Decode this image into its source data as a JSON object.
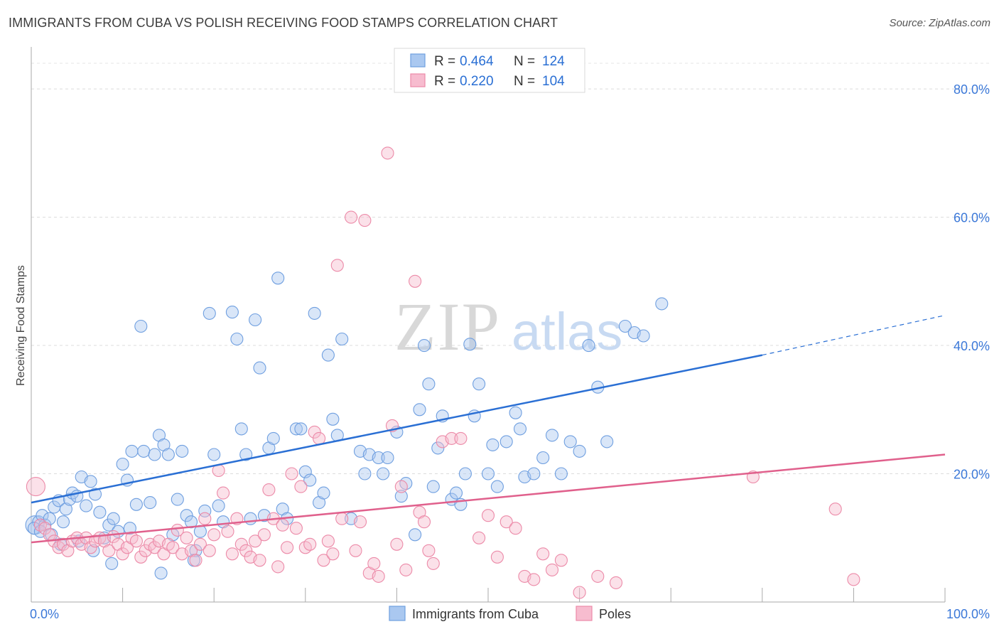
{
  "title": "IMMIGRANTS FROM CUBA VS POLISH RECEIVING FOOD STAMPS CORRELATION CHART",
  "source": "Source: ZipAtlas.com",
  "watermark": {
    "zip": "ZIP",
    "atlas": "atlas"
  },
  "chart_data": {
    "type": "scatter",
    "title": "IMMIGRANTS FROM CUBA VS POLISH RECEIVING FOOD STAMPS CORRELATION CHART",
    "xlabel": "",
    "ylabel": "Receiving Food Stamps",
    "xlim": [
      0,
      100
    ],
    "ylim": [
      0,
      85
    ],
    "x_tick_labels": [
      "0.0%",
      "100.0%"
    ],
    "y_ticks": [
      20,
      40,
      60,
      80
    ],
    "y_tick_labels": [
      "20.0%",
      "40.0%",
      "60.0%",
      "80.0%"
    ],
    "grid": true,
    "legend_position": "top-center",
    "stats": [
      {
        "r_label": "R =",
        "r": "0.464",
        "n_label": "N =",
        "n": "124"
      },
      {
        "r_label": "R =",
        "r": "0.220",
        "n_label": "N =",
        "n": "104"
      }
    ],
    "series": [
      {
        "name": "Immigrants from Cuba",
        "color": "#6f9fe0",
        "fill": "#aac8f0",
        "line_color": "#2a6fd4",
        "trend": {
          "x0": 0,
          "y0": 15.5,
          "x1": 80,
          "y1": 38.5,
          "dash_to_x": 100,
          "dash_to_y": 44.7
        },
        "points": [
          [
            0.4,
            12
          ],
          [
            0.8,
            12.5
          ],
          [
            1.2,
            13.5
          ],
          [
            1.5,
            12
          ],
          [
            2,
            13
          ],
          [
            2.5,
            14.8
          ],
          [
            3,
            15.8
          ],
          [
            3.5,
            12.5
          ],
          [
            3.8,
            14.5
          ],
          [
            4.2,
            16
          ],
          [
            4.5,
            17
          ],
          [
            5,
            16.5
          ],
          [
            5.5,
            19.5
          ],
          [
            6,
            15
          ],
          [
            6.5,
            18.8
          ],
          [
            7,
            16.8
          ],
          [
            7.5,
            14
          ],
          [
            8,
            10
          ],
          [
            8.5,
            12
          ],
          [
            9,
            13
          ],
          [
            9.5,
            11
          ],
          [
            10,
            21.5
          ],
          [
            10.5,
            19
          ],
          [
            11,
            23.5
          ],
          [
            11.5,
            15.2
          ],
          [
            12,
            43
          ],
          [
            12.3,
            23.5
          ],
          [
            13,
            15.5
          ],
          [
            13.5,
            23
          ],
          [
            14,
            26
          ],
          [
            14.5,
            24.5
          ],
          [
            15,
            23
          ],
          [
            15.5,
            10.5
          ],
          [
            16,
            16
          ],
          [
            16.5,
            23.5
          ],
          [
            17,
            13.5
          ],
          [
            17.5,
            12.5
          ],
          [
            18,
            8
          ],
          [
            18.5,
            11
          ],
          [
            19,
            14.2
          ],
          [
            19.5,
            45
          ],
          [
            20,
            23
          ],
          [
            20.5,
            15
          ],
          [
            21,
            12.5
          ],
          [
            22,
            45.2
          ],
          [
            22.5,
            41
          ],
          [
            23,
            27
          ],
          [
            23.5,
            23
          ],
          [
            24,
            13
          ],
          [
            24.5,
            44
          ],
          [
            25,
            36.5
          ],
          [
            25.5,
            13.5
          ],
          [
            26,
            24
          ],
          [
            26.5,
            25.5
          ],
          [
            27,
            50.5
          ],
          [
            27.5,
            14.5
          ],
          [
            28,
            13
          ],
          [
            29,
            27
          ],
          [
            29.5,
            27
          ],
          [
            30,
            20.3
          ],
          [
            30.5,
            19
          ],
          [
            31,
            45
          ],
          [
            31.5,
            15.5
          ],
          [
            32,
            17
          ],
          [
            32.5,
            38.5
          ],
          [
            33,
            28.5
          ],
          [
            33.5,
            26
          ],
          [
            34,
            41
          ],
          [
            35,
            13
          ],
          [
            36,
            23.5
          ],
          [
            36.5,
            20
          ],
          [
            37,
            23
          ],
          [
            38,
            22.5
          ],
          [
            38.5,
            20
          ],
          [
            39,
            22.5
          ],
          [
            40,
            26.5
          ],
          [
            40.5,
            16.5
          ],
          [
            41,
            18.5
          ],
          [
            42,
            10.5
          ],
          [
            42.5,
            30
          ],
          [
            43,
            40
          ],
          [
            43.5,
            34
          ],
          [
            44,
            18
          ],
          [
            44.5,
            24
          ],
          [
            45,
            29
          ],
          [
            46,
            16
          ],
          [
            46.5,
            17
          ],
          [
            47,
            15.2
          ],
          [
            47.5,
            20
          ],
          [
            48,
            40.2
          ],
          [
            48.5,
            29
          ],
          [
            49,
            34
          ],
          [
            50,
            20
          ],
          [
            50.5,
            24.5
          ],
          [
            51,
            18
          ],
          [
            52,
            25
          ],
          [
            53,
            29.5
          ],
          [
            53.5,
            27
          ],
          [
            54,
            19.5
          ],
          [
            55,
            20
          ],
          [
            56,
            22.5
          ],
          [
            57,
            26
          ],
          [
            58,
            20
          ],
          [
            59,
            25
          ],
          [
            60,
            23.5
          ],
          [
            61,
            40
          ],
          [
            62,
            33.5
          ],
          [
            63,
            25
          ],
          [
            65,
            43
          ],
          [
            66,
            42
          ],
          [
            67,
            41.5
          ],
          [
            69,
            46.5
          ],
          [
            0.3,
            11.5
          ],
          [
            1,
            11
          ],
          [
            2.2,
            10.5
          ],
          [
            3.2,
            9
          ],
          [
            5.2,
            9.5
          ],
          [
            6.8,
            8
          ],
          [
            8.8,
            6
          ],
          [
            10.8,
            11.5
          ],
          [
            14.2,
            4.5
          ],
          [
            17.8,
            6.5
          ]
        ]
      },
      {
        "name": "Poles",
        "color": "#ec8aa8",
        "fill": "#f7bccf",
        "line_color": "#e0608c",
        "trend": {
          "x0": 0,
          "y0": 9.3,
          "x1": 100,
          "y1": 23
        },
        "points": [
          [
            0.5,
            18
          ],
          [
            1,
            12
          ],
          [
            1.5,
            11.5
          ],
          [
            2,
            10.5
          ],
          [
            2.5,
            9.5
          ],
          [
            3,
            8.5
          ],
          [
            3.5,
            9
          ],
          [
            4,
            8
          ],
          [
            4.5,
            9.5
          ],
          [
            5,
            10
          ],
          [
            5.5,
            9
          ],
          [
            6,
            10
          ],
          [
            6.5,
            8.5
          ],
          [
            7,
            9.5
          ],
          [
            7.5,
            10
          ],
          [
            8,
            9.5
          ],
          [
            8.5,
            8
          ],
          [
            9,
            10.2
          ],
          [
            9.5,
            9
          ],
          [
            10,
            7.5
          ],
          [
            10.5,
            8.5
          ],
          [
            11,
            10
          ],
          [
            11.5,
            9.5
          ],
          [
            12,
            7
          ],
          [
            12.5,
            8
          ],
          [
            13,
            9
          ],
          [
            13.5,
            8.5
          ],
          [
            14,
            9.5
          ],
          [
            14.5,
            7.5
          ],
          [
            15,
            9
          ],
          [
            15.5,
            8.5
          ],
          [
            16,
            11.2
          ],
          [
            16.5,
            7.5
          ],
          [
            17,
            10
          ],
          [
            17.5,
            8
          ],
          [
            18,
            6.5
          ],
          [
            18.5,
            9
          ],
          [
            19,
            13
          ],
          [
            19.5,
            8
          ],
          [
            20,
            10.5
          ],
          [
            20.5,
            20.5
          ],
          [
            21,
            17
          ],
          [
            21.5,
            11
          ],
          [
            22,
            7.5
          ],
          [
            22.5,
            13
          ],
          [
            23,
            9
          ],
          [
            23.5,
            8
          ],
          [
            24,
            7
          ],
          [
            24.5,
            9.5
          ],
          [
            25,
            6.5
          ],
          [
            25.5,
            10.5
          ],
          [
            26,
            17.5
          ],
          [
            26.5,
            13
          ],
          [
            27,
            5.5
          ],
          [
            27.5,
            12
          ],
          [
            28,
            8.5
          ],
          [
            28.5,
            20
          ],
          [
            29,
            11.5
          ],
          [
            29.5,
            18
          ],
          [
            30,
            8.5
          ],
          [
            30.5,
            9
          ],
          [
            31,
            26.5
          ],
          [
            31.5,
            25.5
          ],
          [
            32,
            6.5
          ],
          [
            32.5,
            9.5
          ],
          [
            33,
            7.5
          ],
          [
            33.5,
            52.5
          ],
          [
            34,
            13
          ],
          [
            35,
            60
          ],
          [
            35.5,
            8
          ],
          [
            36,
            12.5
          ],
          [
            36.5,
            59.5
          ],
          [
            37,
            4.5
          ],
          [
            37.5,
            6
          ],
          [
            38,
            4
          ],
          [
            39,
            70
          ],
          [
            39.5,
            27.5
          ],
          [
            40,
            9
          ],
          [
            40.5,
            18
          ],
          [
            41,
            5
          ],
          [
            42,
            50
          ],
          [
            42.5,
            14
          ],
          [
            43,
            12.5
          ],
          [
            43.5,
            8
          ],
          [
            44,
            6
          ],
          [
            45,
            25
          ],
          [
            46,
            25.5
          ],
          [
            47,
            25.5
          ],
          [
            49,
            10
          ],
          [
            50,
            13.5
          ],
          [
            51,
            7
          ],
          [
            52,
            12.5
          ],
          [
            53,
            11.5
          ],
          [
            54,
            4
          ],
          [
            55,
            3.5
          ],
          [
            56,
            7.5
          ],
          [
            57,
            5
          ],
          [
            58,
            6.5
          ],
          [
            60,
            1.5
          ],
          [
            62,
            4
          ],
          [
            64,
            3
          ],
          [
            79,
            19.5
          ],
          [
            88,
            14.5
          ],
          [
            90,
            3.5
          ]
        ]
      }
    ]
  }
}
